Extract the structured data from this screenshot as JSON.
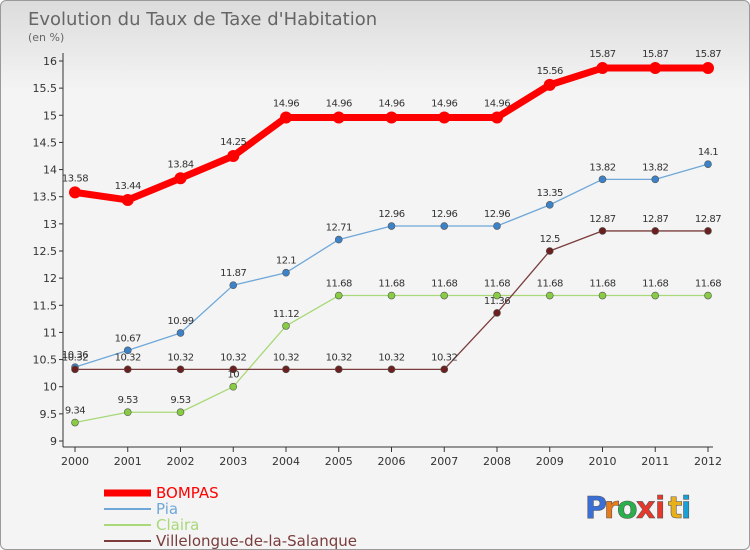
{
  "chart_data": {
    "type": "line",
    "title": "Evolution du Taux de Taxe d'Habitation",
    "subtitle": "(en %)",
    "categories": [
      "2000",
      "2001",
      "2002",
      "2003",
      "2004",
      "2005",
      "2006",
      "2007",
      "2008",
      "2009",
      "2010",
      "2011",
      "2012"
    ],
    "y_ticks": [
      "9",
      "9.5",
      "10",
      "10.5",
      "11",
      "11.5",
      "12",
      "12.5",
      "13",
      "13.5",
      "14",
      "14.5",
      "15",
      "15.5",
      "16"
    ],
    "ylim": [
      9,
      16
    ],
    "grid": false,
    "legend_position": "bottom-left",
    "series": [
      {
        "name": "BOMPAS",
        "color": "#ff0000",
        "marker": "#ff0000",
        "width": 7,
        "radius": 6,
        "values": [
          13.58,
          13.44,
          13.84,
          14.25,
          14.96,
          14.96,
          14.96,
          14.96,
          14.96,
          15.56,
          15.87,
          15.87,
          15.87
        ],
        "labels": [
          "13.58",
          "13.44",
          "13.84",
          "14.25",
          "14.96",
          "14.96",
          "14.96",
          "14.96",
          "14.96",
          "15.56",
          "15.87",
          "15.87",
          "15.87"
        ]
      },
      {
        "name": "Pia",
        "color": "#6fa8d8",
        "marker": "#3c82c8",
        "width": 1.3,
        "radius": 3.5,
        "values": [
          10.36,
          10.67,
          10.99,
          11.87,
          12.1,
          12.71,
          12.96,
          12.96,
          12.96,
          13.35,
          13.82,
          13.82,
          14.1
        ],
        "labels": [
          "10.36",
          "10.67",
          "10.99",
          "11.87",
          "12.1",
          "12.71",
          "12.96",
          "12.96",
          "12.96",
          "13.35",
          "13.82",
          "13.82",
          "14.1"
        ]
      },
      {
        "name": "Claira",
        "color": "#a8d878",
        "marker": "#88cc44",
        "width": 1.3,
        "radius": 3.5,
        "values": [
          9.34,
          9.53,
          9.53,
          10,
          11.12,
          11.68,
          11.68,
          11.68,
          11.68,
          11.68,
          11.68,
          11.68,
          11.68
        ],
        "labels": [
          "9.34",
          "9.53",
          "9.53",
          "10",
          "11.12",
          "11.68",
          "11.68",
          "11.68",
          "11.68",
          "11.68",
          "11.68",
          "11.68",
          "11.68"
        ]
      },
      {
        "name": "Villelongue-de-la-Salanque",
        "color": "#7a3c3c",
        "marker": "#6b1f1f",
        "width": 1.3,
        "radius": 3.5,
        "values": [
          10.32,
          10.32,
          10.32,
          10.32,
          10.32,
          10.32,
          10.32,
          10.32,
          11.36,
          12.5,
          12.87,
          12.87,
          12.87
        ],
        "labels": [
          "10.32",
          "10.32",
          "10.32",
          "10.32",
          "10.32",
          "10.32",
          "10.32",
          "10.32",
          "11.36",
          "12.5",
          "12.87",
          "12.87",
          "12.87"
        ]
      }
    ]
  },
  "logo": {
    "text": "Proxiti",
    "letters": [
      "P",
      "r",
      "o",
      "x",
      "i",
      "t",
      "i"
    ],
    "colors": [
      "#3a6fd8",
      "#e87a1a",
      "#2ab04a",
      "#e8382a",
      "#e8382a",
      "#e8b01a",
      "#1aa0d8"
    ]
  }
}
